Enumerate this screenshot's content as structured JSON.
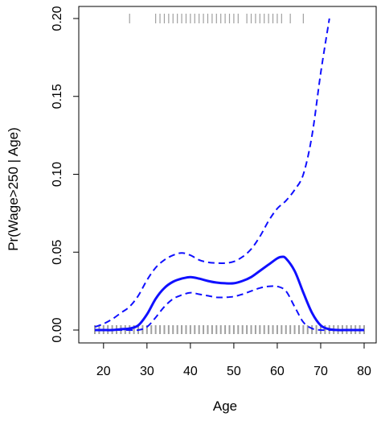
{
  "chart_data": {
    "type": "line",
    "xlabel": "Age",
    "ylabel": "Pr(Wage>250 | Age)",
    "xlim": [
      18,
      80
    ],
    "ylim": [
      0,
      0.2
    ],
    "x_ticks": [
      "20",
      "30",
      "40",
      "50",
      "60",
      "70",
      "80"
    ],
    "y_ticks": [
      "0.00",
      "0.05",
      "0.10",
      "0.15",
      "0.20"
    ],
    "grid": false,
    "legend": "none",
    "colors": {
      "fit": "#1010ff",
      "band": "#1010ff",
      "rug": "#a0a0a0",
      "axis": "#000000"
    },
    "series": [
      {
        "role": "fit",
        "x": [
          18,
          20,
          22,
          24,
          26,
          28,
          30,
          32,
          34,
          36,
          38,
          40,
          42,
          44,
          46,
          48,
          50,
          52,
          54,
          56,
          58,
          60,
          61,
          62,
          64,
          66,
          68,
          70,
          72,
          74,
          76,
          78,
          80
        ],
        "y": [
          0.0,
          0.0,
          0.0,
          0.0005,
          0.001,
          0.003,
          0.01,
          0.02,
          0.027,
          0.031,
          0.033,
          0.034,
          0.033,
          0.0315,
          0.0305,
          0.03,
          0.03,
          0.0315,
          0.034,
          0.038,
          0.042,
          0.046,
          0.047,
          0.046,
          0.038,
          0.024,
          0.011,
          0.003,
          0.0005,
          0.0,
          0.0,
          0.0,
          0.0
        ]
      },
      {
        "role": "upper",
        "x": [
          18,
          20,
          22,
          24,
          26,
          28,
          30,
          32,
          34,
          36,
          38,
          40,
          42,
          44,
          46,
          48,
          50,
          52,
          54,
          56,
          58,
          60,
          62,
          64,
          66,
          68,
          70,
          72
        ],
        "y": [
          0.002,
          0.004,
          0.007,
          0.011,
          0.015,
          0.022,
          0.032,
          0.04,
          0.045,
          0.048,
          0.0495,
          0.048,
          0.045,
          0.0435,
          0.043,
          0.043,
          0.044,
          0.047,
          0.052,
          0.06,
          0.07,
          0.078,
          0.083,
          0.09,
          0.1,
          0.125,
          0.165,
          0.2
        ]
      },
      {
        "role": "lower",
        "x": [
          18,
          20,
          22,
          24,
          26,
          28,
          30,
          32,
          34,
          36,
          38,
          40,
          42,
          44,
          46,
          48,
          50,
          52,
          54,
          56,
          58,
          60,
          62,
          64,
          66,
          68,
          70,
          72,
          74,
          76,
          78,
          80
        ],
        "y": [
          0.0,
          0.0,
          0.0,
          0.0,
          0.0,
          0.0,
          0.002,
          0.008,
          0.015,
          0.02,
          0.0225,
          0.024,
          0.023,
          0.022,
          0.021,
          0.021,
          0.0215,
          0.023,
          0.025,
          0.027,
          0.028,
          0.028,
          0.025,
          0.015,
          0.005,
          0.001,
          0.0,
          0.0,
          0.0,
          0.0,
          0.0,
          0.0
        ]
      }
    ],
    "rug_top_ages": [
      26,
      32,
      33,
      34,
      35,
      36,
      37,
      38,
      39,
      40,
      41,
      42,
      43,
      44,
      45,
      46,
      47,
      48,
      49,
      50,
      51,
      53,
      54,
      55,
      56,
      57,
      58,
      59,
      60,
      61,
      63,
      66
    ],
    "rug_bottom_ages": [
      18,
      19,
      20,
      21,
      22,
      23,
      24,
      25,
      26,
      27,
      28,
      29,
      30,
      31,
      32,
      33,
      34,
      35,
      36,
      37,
      38,
      39,
      40,
      41,
      42,
      43,
      44,
      45,
      46,
      47,
      48,
      49,
      50,
      51,
      52,
      53,
      54,
      55,
      56,
      57,
      58,
      59,
      60,
      61,
      62,
      63,
      64,
      65,
      66,
      67,
      68,
      69,
      70,
      71,
      72,
      73,
      74,
      75,
      76,
      77,
      78,
      79,
      80
    ]
  }
}
